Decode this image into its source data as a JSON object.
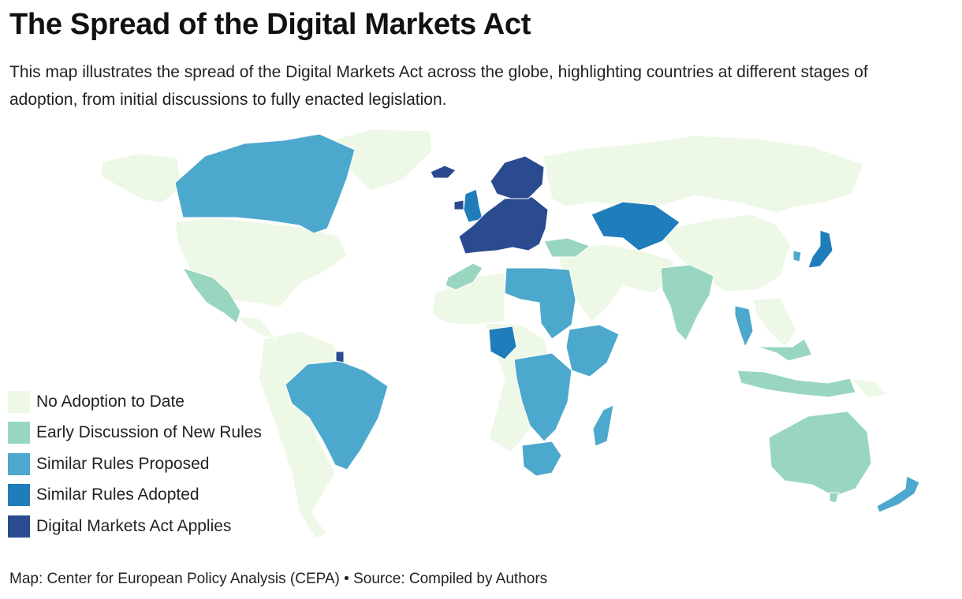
{
  "title": "The Spread of the Digital Markets Act",
  "subtitle": "This map illustrates the spread of the Digital Markets Act across the globe, highlighting countries at different stages of adoption, from initial discussions to fully enacted legislation.",
  "legend": [
    {
      "label": "No Adoption to Date",
      "color": "#eef8e6"
    },
    {
      "label": "Early Discussion of New Rules",
      "color": "#99d6c0"
    },
    {
      "label": "Similar Rules Proposed",
      "color": "#4ca8cc"
    },
    {
      "label": "Similar Rules Adopted",
      "color": "#1f7dbb"
    },
    {
      "label": "Digital Markets Act Applies",
      "color": "#2a4b8f"
    }
  ],
  "map_regions": {
    "no_adoption": [
      "United States",
      "Greenland",
      "Russia",
      "China",
      "Mongolia",
      "Middle East",
      "North Africa",
      "Central Africa",
      "South America (rest)",
      "Papua New Guinea"
    ],
    "early_discussion": [
      "Mexico",
      "Morocco",
      "Turkey",
      "India",
      "Indonesia",
      "Malaysia",
      "Philippines",
      "Australia"
    ],
    "similar_rules_proposed": [
      "Canada",
      "Brazil",
      "Libya",
      "Egypt",
      "Sudan",
      "Ethiopia",
      "Kenya",
      "Somalia",
      "DR Congo",
      "Tanzania",
      "Zambia",
      "Malawi",
      "Mozambique",
      "South Africa",
      "Madagascar",
      "Thailand",
      "South Korea",
      "New Zealand"
    ],
    "similar_rules_adopted": [
      "Kazakhstan",
      "Nigeria",
      "Japan",
      "United Kingdom"
    ],
    "dma_applies": [
      "European Union",
      "Iceland",
      "Norway",
      "French Guiana"
    ]
  },
  "footer": "Map: Center for European Policy Analysis (CEPA) • Source: Compiled by Authors"
}
